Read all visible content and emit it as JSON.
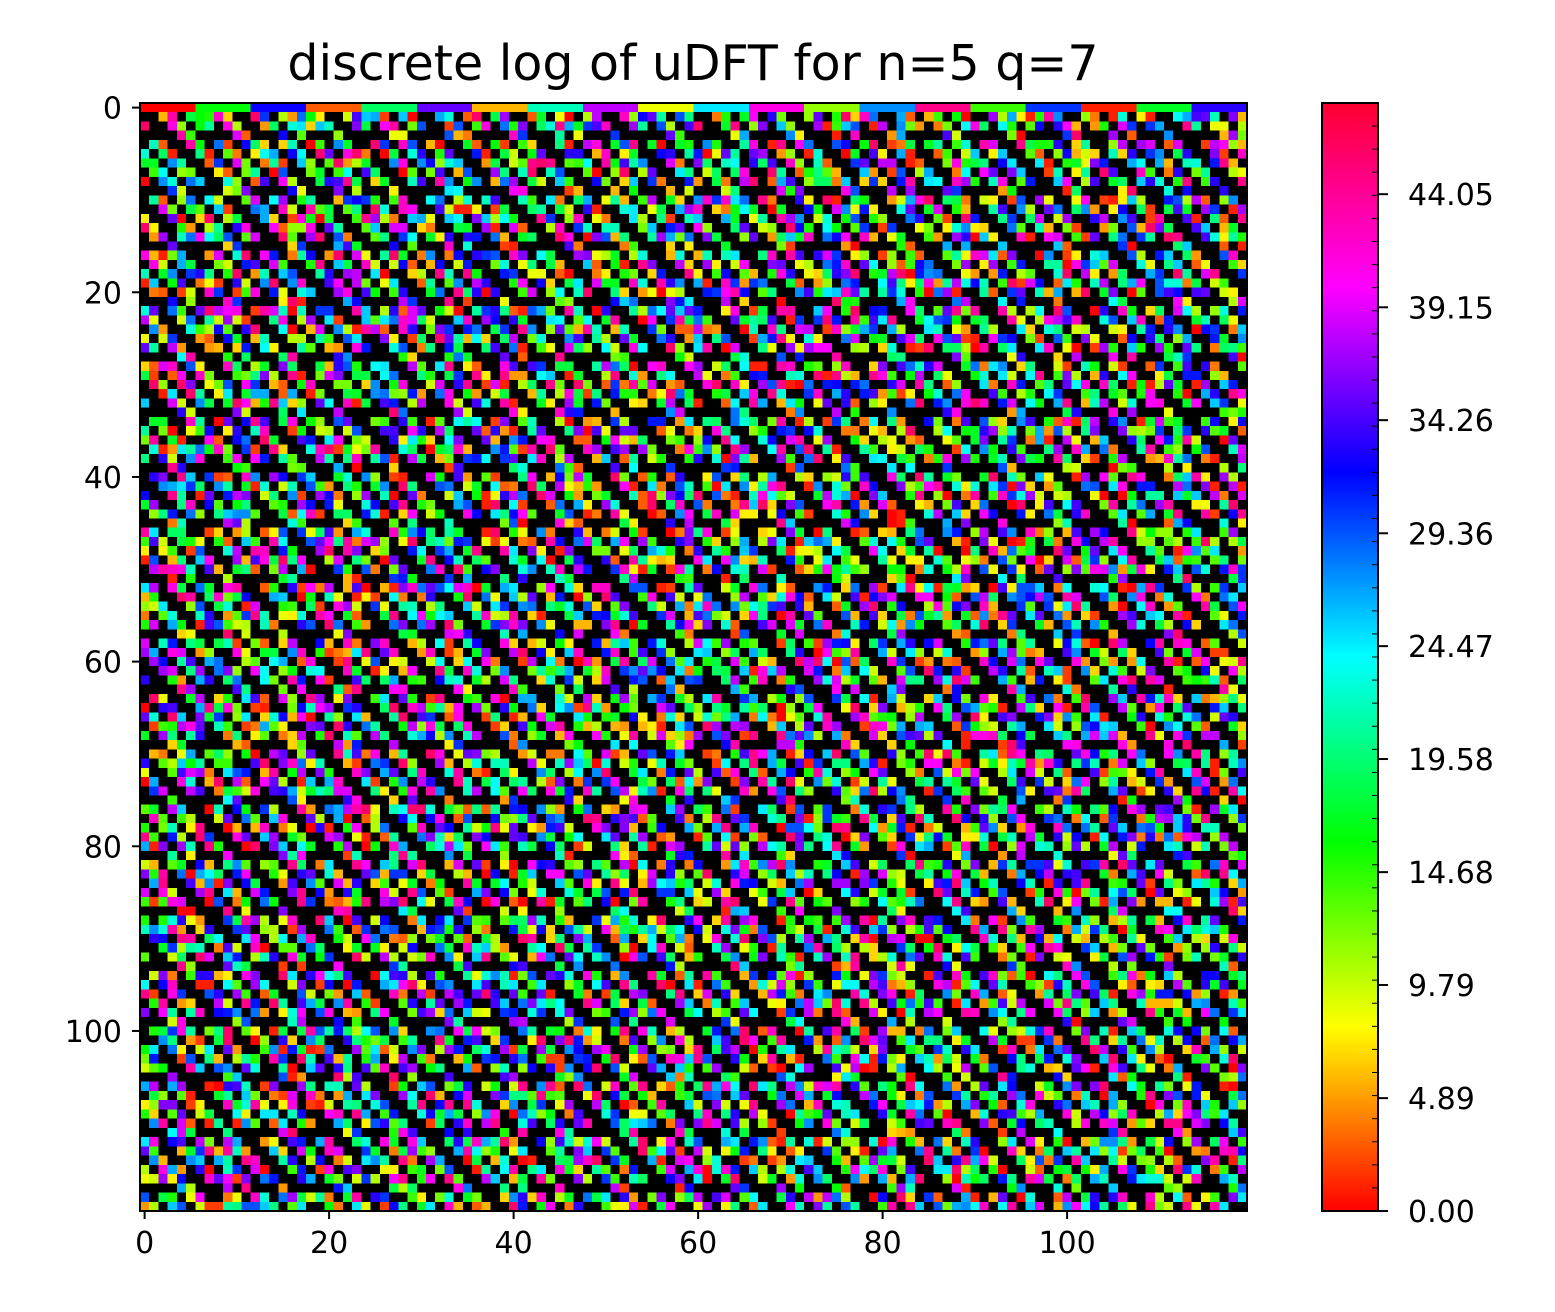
{
  "chart_data": {
    "type": "heatmap",
    "title": "discrete log of uDFT for n=5 q=7",
    "xlabel": "",
    "ylabel": "",
    "rows": 120,
    "cols": 120,
    "xlim": [
      0,
      119
    ],
    "ylim": [
      119,
      0
    ],
    "y_inverted": true,
    "x_ticks": [
      "0",
      "20",
      "40",
      "60",
      "80",
      "100"
    ],
    "y_ticks": [
      "0",
      "20",
      "40",
      "60",
      "80",
      "100"
    ],
    "colormap": "hsv",
    "missing_value_color": "#000000",
    "value_range": [
      0,
      48
    ],
    "colorbar": {
      "ticks": [
        "0.00",
        "4.89",
        "9.79",
        "14.68",
        "19.58",
        "24.47",
        "29.36",
        "34.26",
        "39.15",
        "44.05"
      ],
      "tick_values": [
        0.0,
        4.89,
        9.79,
        14.68,
        19.58,
        24.47,
        29.36,
        34.26,
        39.15,
        44.05
      ]
    },
    "grid": false,
    "legend": "none"
  }
}
